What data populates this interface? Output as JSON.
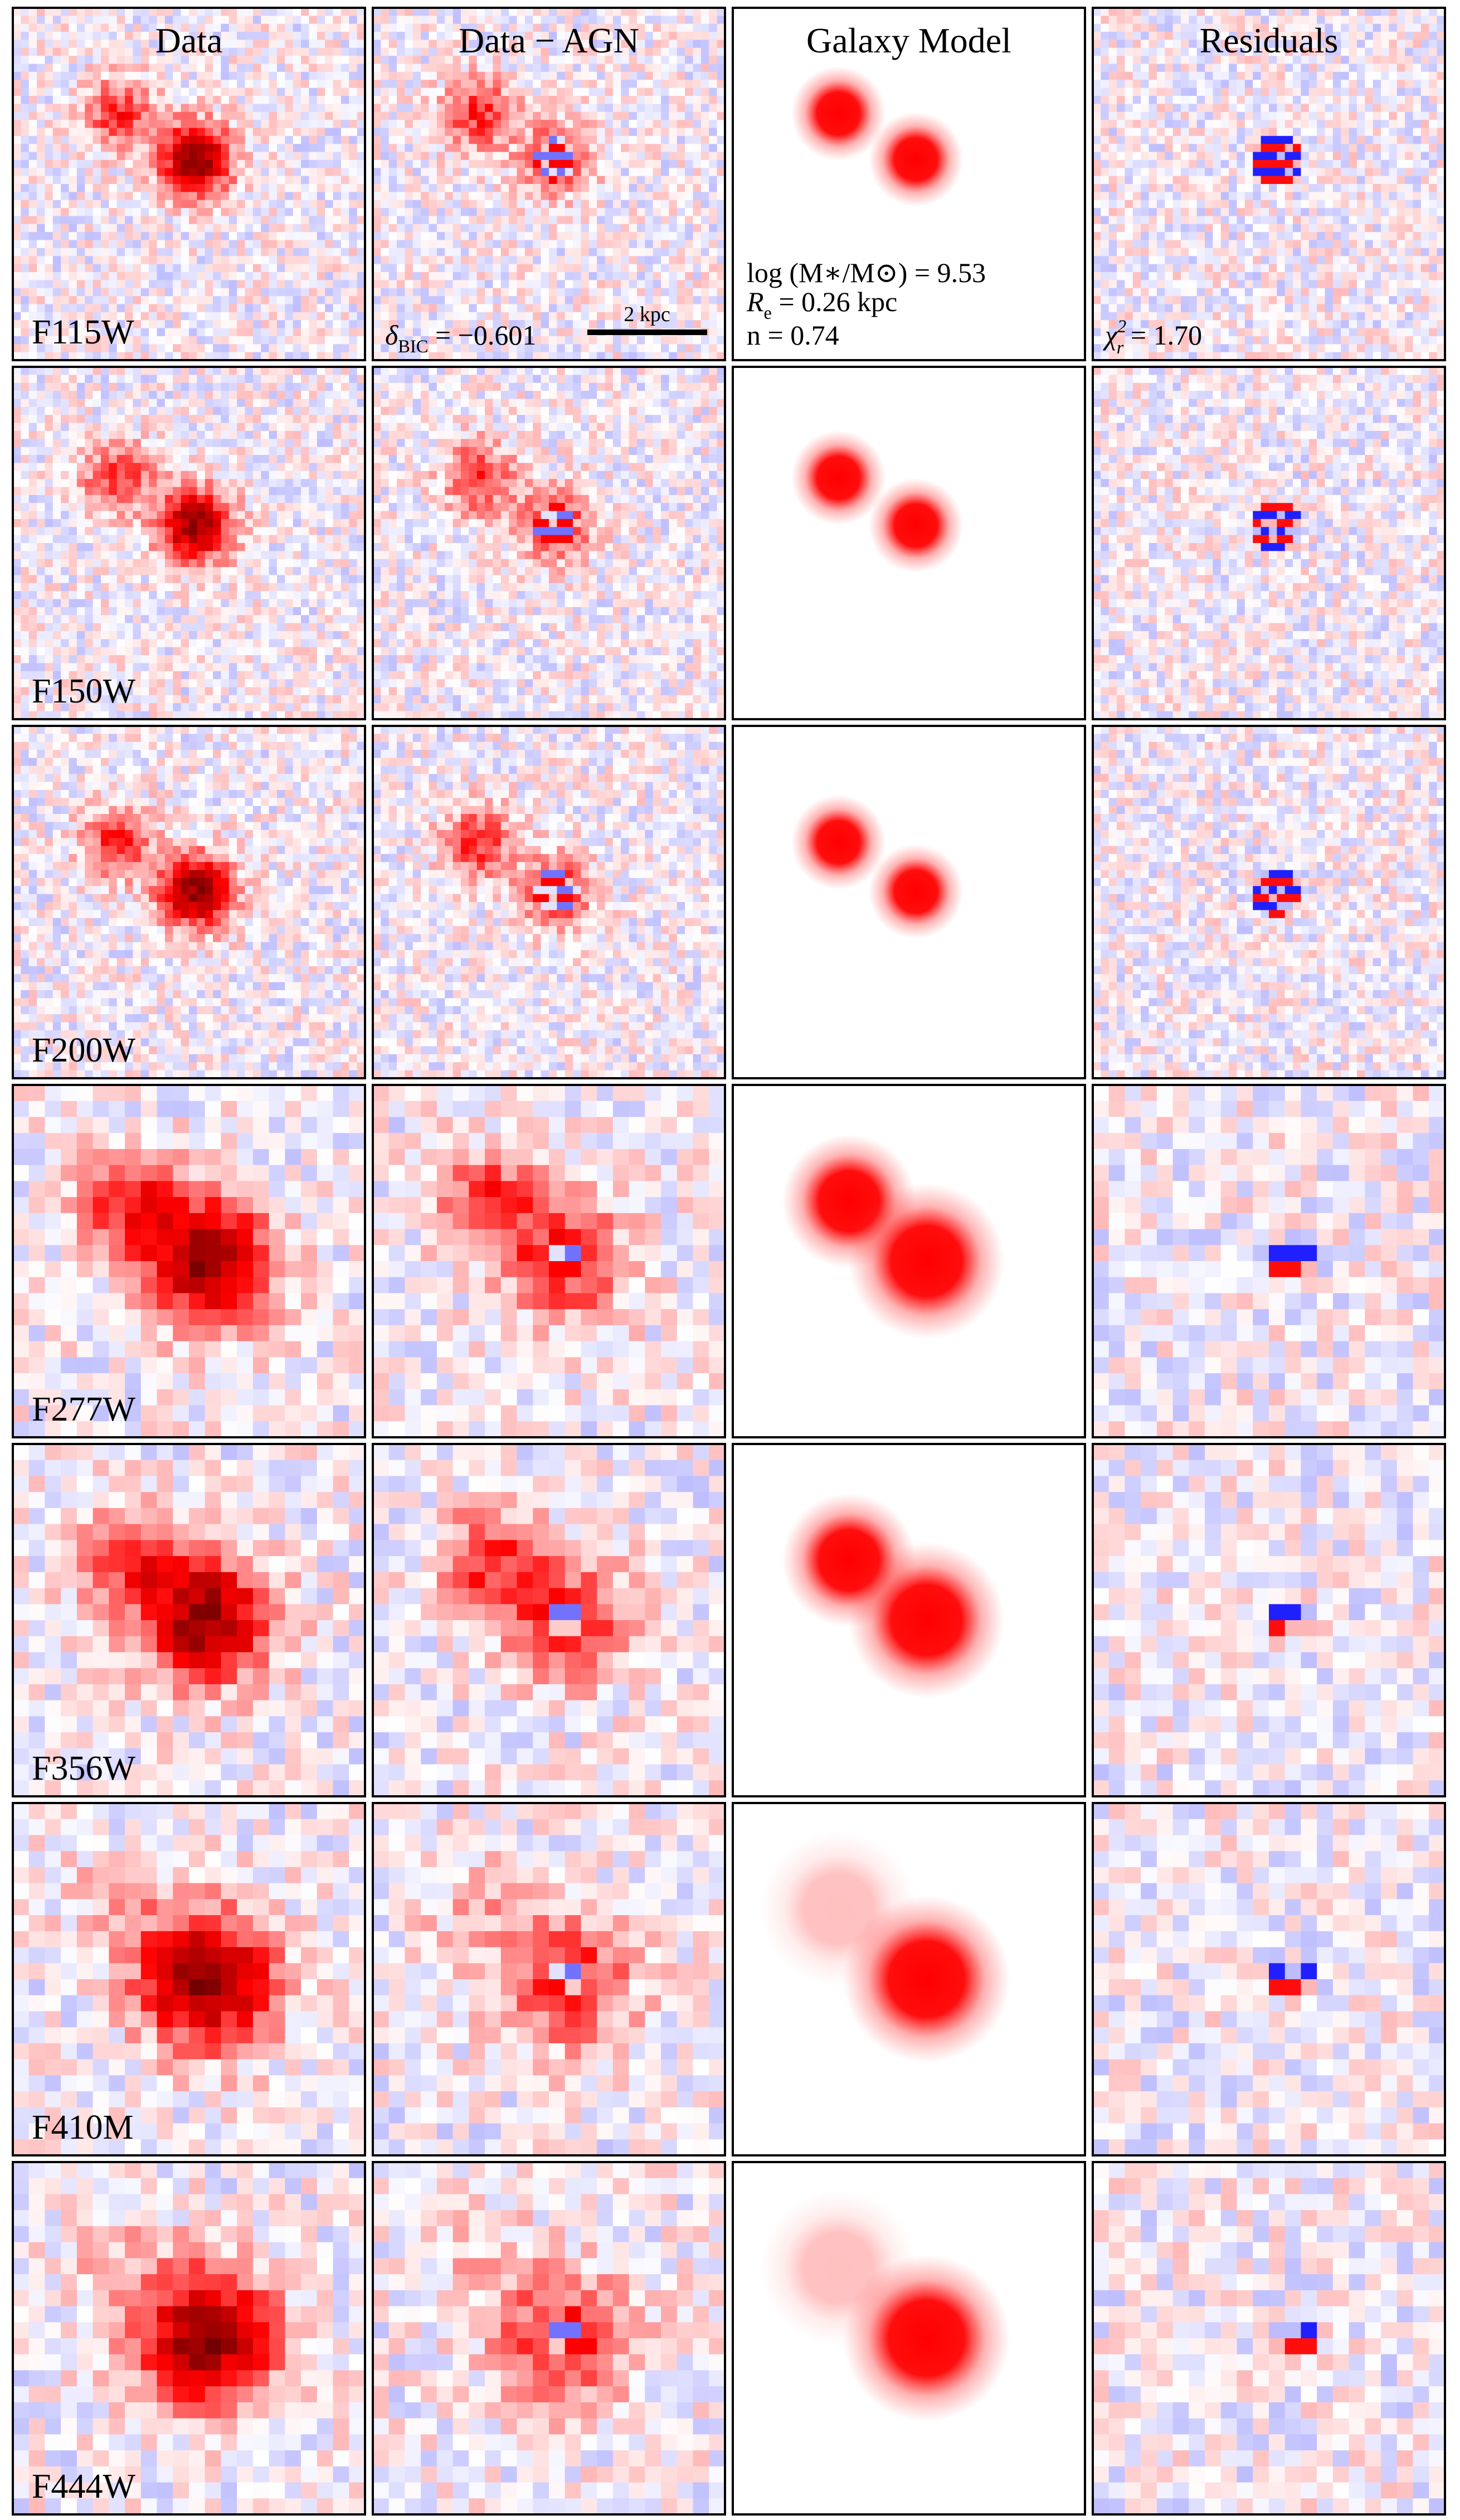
{
  "columns": [
    "Data",
    "Data − AGN",
    "Galaxy Model",
    "Residuals"
  ],
  "rows": [
    "F115W",
    "F150W",
    "F200W",
    "F277W",
    "F356W",
    "F410M",
    "F444W"
  ],
  "annotations": {
    "bic": {
      "symbol": "δ",
      "sub": "BIC",
      "text": " = −0.601"
    },
    "scale_bar": "2 kpc",
    "mass": "log (M∗/M⊙) = 9.53",
    "re": {
      "symbol": "R",
      "sub": "e",
      "text": " = 0.26 kpc"
    },
    "n": "n = 0.74",
    "chi": {
      "symbol": "χ",
      "sub": "r",
      "sup": "2",
      "text": " = 1.70"
    }
  }
}
